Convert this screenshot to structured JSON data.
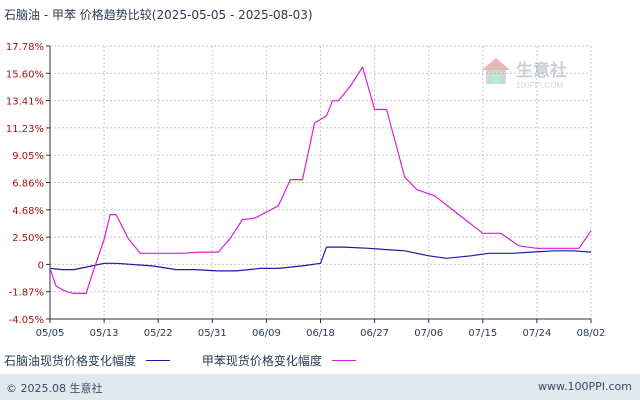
{
  "title": "石脑油 - 甲苯 价格趋势比较(2025-05-05 - 2025-08-03)",
  "watermark": {
    "brand": "生意社",
    "url": "100PPI.COM"
  },
  "footer": {
    "copyright": "© 2025.08 生意社",
    "site": "www.100PPI.com"
  },
  "colors": {
    "series1": "#1a1aa6",
    "series2": "#d81fd8",
    "axis": "#333333",
    "grid": "#c8c8c8"
  },
  "chart_data": {
    "type": "line",
    "title": "石脑油 - 甲苯 价格趋势比较(2025-05-05 - 2025-08-03)",
    "x_range": [
      "2025-05-05",
      "2025-08-03"
    ],
    "xticks": [
      "05/05",
      "05/13",
      "05/22",
      "05/31",
      "06/09",
      "06/18",
      "06/27",
      "07/06",
      "07/15",
      "07/24",
      "08/02"
    ],
    "yticks": [
      "17.78%",
      "15.60%",
      "13.41%",
      "11.23%",
      "9.05%",
      "6.86%",
      "4.68%",
      "2.50%",
      "0",
      "-1.87%",
      "-4.05%"
    ],
    "ylim": [
      -4.05,
      17.78
    ],
    "grid": true,
    "legend": "bottom-left",
    "series": [
      {
        "name": "石脑油现货价格变化幅度",
        "x": [
          "2025-05-05",
          "2025-05-07",
          "2025-05-09",
          "2025-05-12",
          "2025-05-14",
          "2025-05-16",
          "2025-05-19",
          "2025-05-22",
          "2025-05-26",
          "2025-05-29",
          "2025-06-02",
          "2025-06-05",
          "2025-06-09",
          "2025-06-12",
          "2025-06-16",
          "2025-06-19",
          "2025-06-20",
          "2025-06-23",
          "2025-06-27",
          "2025-06-30",
          "2025-07-03",
          "2025-07-07",
          "2025-07-10",
          "2025-07-14",
          "2025-07-17",
          "2025-07-21",
          "2025-07-24",
          "2025-07-28",
          "2025-07-31",
          "2025-08-03"
        ],
        "values": [
          0.0,
          -0.1,
          -0.1,
          0.2,
          0.4,
          0.4,
          0.3,
          0.2,
          -0.1,
          -0.1,
          -0.2,
          -0.2,
          0.0,
          0.0,
          0.2,
          0.4,
          1.7,
          1.7,
          1.6,
          1.5,
          1.4,
          1.0,
          0.8,
          1.0,
          1.2,
          1.2,
          1.3,
          1.4,
          1.4,
          1.3
        ]
      },
      {
        "name": "甲苯现货价格变化幅度",
        "x": [
          "2025-05-05",
          "2025-05-06",
          "2025-05-07",
          "2025-05-08",
          "2025-05-09",
          "2025-05-11",
          "2025-05-12",
          "2025-05-14",
          "2025-05-15",
          "2025-05-16",
          "2025-05-18",
          "2025-05-20",
          "2025-05-24",
          "2025-05-27",
          "2025-05-30",
          "2025-06-02",
          "2025-06-04",
          "2025-06-06",
          "2025-06-08",
          "2025-06-10",
          "2025-06-12",
          "2025-06-14",
          "2025-06-16",
          "2025-06-18",
          "2025-06-20",
          "2025-06-21",
          "2025-06-22",
          "2025-06-24",
          "2025-06-26",
          "2025-06-28",
          "2025-06-30",
          "2025-07-03",
          "2025-07-05",
          "2025-07-08",
          "2025-07-12",
          "2025-07-16",
          "2025-07-19",
          "2025-07-22",
          "2025-07-25",
          "2025-07-29",
          "2025-08-01",
          "2025-08-03"
        ],
        "values": [
          0.0,
          -1.4,
          -1.7,
          -1.9,
          -2.0,
          -2.0,
          -0.5,
          2.3,
          4.3,
          4.3,
          2.4,
          1.2,
          1.2,
          1.2,
          1.3,
          1.3,
          2.4,
          3.9,
          4.0,
          4.5,
          5.0,
          7.1,
          7.1,
          11.6,
          12.2,
          13.4,
          13.4,
          14.6,
          16.1,
          12.7,
          12.7,
          7.3,
          6.3,
          5.8,
          4.3,
          2.8,
          2.8,
          1.8,
          1.6,
          1.6,
          1.6,
          3.0
        ]
      }
    ]
  }
}
